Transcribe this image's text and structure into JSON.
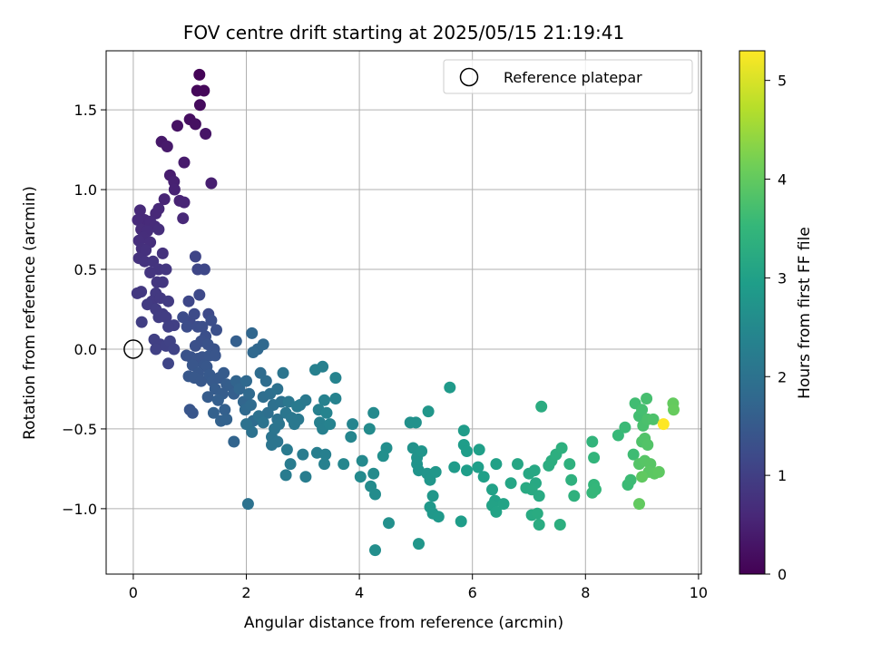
{
  "chart_data": {
    "type": "scatter",
    "title": "FOV centre drift starting at 2025/05/15 21:19:41",
    "xlabel": "Angular distance from reference (arcmin)",
    "ylabel": "Rotation from reference (arcmin)",
    "xlim": [
      -0.48,
      10.05
    ],
    "ylim": [
      -1.41,
      1.87
    ],
    "x_ticks": [
      0,
      2,
      4,
      6,
      8,
      10
    ],
    "y_ticks": [
      -1.0,
      -0.5,
      0.0,
      0.5,
      1.0,
      1.5
    ],
    "x_tick_labels": [
      "0",
      "2",
      "4",
      "6",
      "8",
      "10"
    ],
    "y_tick_labels": [
      "−1.0",
      "−0.5",
      "0.0",
      "0.5",
      "1.0",
      "1.5"
    ],
    "grid": true,
    "legend": {
      "position": "top-right",
      "entries": [
        "Reference platepar"
      ]
    },
    "reference_point": {
      "x": 0.0,
      "y": 0.0,
      "label": "Reference platepar"
    },
    "colorbar": {
      "label": "Hours from first FF file",
      "range": [
        0,
        5.3
      ],
      "ticks": [
        0,
        1,
        2,
        3,
        4,
        5
      ],
      "tick_labels": [
        "0",
        "1",
        "2",
        "3",
        "4",
        "5"
      ],
      "colormap": "viridis"
    },
    "colormap_stops": [
      "#440154",
      "#482878",
      "#3e4989",
      "#31688e",
      "#26828e",
      "#1f9e89",
      "#35b779",
      "#6ece58",
      "#b5de2b",
      "#fde725"
    ],
    "points": [
      [
        1.17,
        1.72,
        0.05
      ],
      [
        1.13,
        1.62,
        0.1
      ],
      [
        1.25,
        1.62,
        0.1
      ],
      [
        1.18,
        1.53,
        0.15
      ],
      [
        1.0,
        1.44,
        0.2
      ],
      [
        1.1,
        1.41,
        0.22
      ],
      [
        0.78,
        1.4,
        0.25
      ],
      [
        1.28,
        1.35,
        0.3
      ],
      [
        0.5,
        1.3,
        0.35
      ],
      [
        0.6,
        1.27,
        0.38
      ],
      [
        0.9,
        1.17,
        0.4
      ],
      [
        1.38,
        1.04,
        0.45
      ],
      [
        0.65,
        1.09,
        0.42
      ],
      [
        0.72,
        1.05,
        0.48
      ],
      [
        0.73,
        1.0,
        0.5
      ],
      [
        0.82,
        0.93,
        0.52
      ],
      [
        0.9,
        0.92,
        0.55
      ],
      [
        0.55,
        0.94,
        0.55
      ],
      [
        0.45,
        0.88,
        0.6
      ],
      [
        0.4,
        0.85,
        0.6
      ],
      [
        0.12,
        0.87,
        0.62
      ],
      [
        0.2,
        0.81,
        0.63
      ],
      [
        0.08,
        0.81,
        0.65
      ],
      [
        0.3,
        0.8,
        0.65
      ],
      [
        0.38,
        0.77,
        0.66
      ],
      [
        0.14,
        0.75,
        0.67
      ],
      [
        0.25,
        0.74,
        0.68
      ],
      [
        0.45,
        0.75,
        0.7
      ],
      [
        0.18,
        0.7,
        0.7
      ],
      [
        0.1,
        0.68,
        0.72
      ],
      [
        0.3,
        0.67,
        0.72
      ],
      [
        0.15,
        0.63,
        0.74
      ],
      [
        0.22,
        0.62,
        0.75
      ],
      [
        0.1,
        0.57,
        0.76
      ],
      [
        0.52,
        0.6,
        0.77
      ],
      [
        0.88,
        0.82,
        0.6
      ],
      [
        0.2,
        0.55,
        0.78
      ],
      [
        0.35,
        0.55,
        0.8
      ],
      [
        0.45,
        0.5,
        0.82
      ],
      [
        0.3,
        0.48,
        0.82
      ],
      [
        0.58,
        0.5,
        0.85
      ],
      [
        0.42,
        0.42,
        0.85
      ],
      [
        0.52,
        0.42,
        0.86
      ],
      [
        0.14,
        0.36,
        0.88
      ],
      [
        0.07,
        0.35,
        0.88
      ],
      [
        0.4,
        0.35,
        0.9
      ],
      [
        0.33,
        0.3,
        0.9
      ],
      [
        0.48,
        0.32,
        0.9
      ],
      [
        0.25,
        0.28,
        0.92
      ],
      [
        0.62,
        0.3,
        0.92
      ],
      [
        0.4,
        0.25,
        0.95
      ],
      [
        0.52,
        0.22,
        0.95
      ],
      [
        0.45,
        0.2,
        0.96
      ],
      [
        0.58,
        0.2,
        0.97
      ],
      [
        0.15,
        0.17,
        0.98
      ],
      [
        0.72,
        0.15,
        1.0
      ],
      [
        0.62,
        0.14,
        1.0
      ],
      [
        0.37,
        0.06,
        1.02
      ],
      [
        0.48,
        0.03,
        1.02
      ],
      [
        0.4,
        0.0,
        1.03
      ],
      [
        0.58,
        0.02,
        1.04
      ],
      [
        0.65,
        0.05,
        1.05
      ],
      [
        0.72,
        0.0,
        1.07
      ],
      [
        0.62,
        -0.09,
        1.1
      ],
      [
        1.1,
        0.58,
        1.1
      ],
      [
        1.14,
        0.5,
        1.12
      ],
      [
        1.26,
        0.5,
        1.15
      ],
      [
        0.98,
        0.3,
        1.15
      ],
      [
        1.17,
        0.34,
        1.18
      ],
      [
        1.33,
        0.22,
        1.2
      ],
      [
        1.0,
        0.17,
        1.2
      ],
      [
        1.08,
        0.22,
        1.22
      ],
      [
        0.88,
        0.2,
        1.24
      ],
      [
        0.95,
        0.14,
        1.25
      ],
      [
        1.14,
        0.14,
        1.26
      ],
      [
        1.22,
        0.14,
        1.27
      ],
      [
        1.38,
        0.18,
        1.28
      ],
      [
        1.47,
        0.12,
        1.3
      ],
      [
        1.28,
        0.08,
        1.3
      ],
      [
        1.2,
        0.05,
        1.32
      ],
      [
        1.1,
        0.02,
        1.32
      ],
      [
        1.32,
        0.03,
        1.34
      ],
      [
        1.43,
        0.0,
        1.35
      ],
      [
        0.94,
        -0.04,
        1.35
      ],
      [
        1.02,
        -0.05,
        1.36
      ],
      [
        1.14,
        -0.06,
        1.38
      ],
      [
        1.22,
        -0.05,
        1.38
      ],
      [
        1.35,
        -0.04,
        1.4
      ],
      [
        1.45,
        -0.04,
        1.4
      ],
      [
        1.05,
        -0.1,
        1.42
      ],
      [
        1.25,
        -0.1,
        1.43
      ],
      [
        1.3,
        -0.11,
        1.44
      ],
      [
        1.15,
        -0.15,
        1.45
      ],
      [
        0.98,
        -0.17,
        1.45
      ],
      [
        1.08,
        -0.18,
        1.46
      ],
      [
        1.2,
        -0.2,
        1.47
      ],
      [
        1.35,
        -0.16,
        1.48
      ],
      [
        1.4,
        -0.2,
        1.5
      ],
      [
        1.52,
        -0.18,
        1.5
      ],
      [
        1.6,
        -0.15,
        1.52
      ],
      [
        1.45,
        -0.25,
        1.53
      ],
      [
        1.32,
        -0.3,
        1.54
      ],
      [
        1.58,
        -0.28,
        1.55
      ],
      [
        1.65,
        -0.22,
        1.56
      ],
      [
        1.72,
        -0.23,
        1.58
      ],
      [
        1.78,
        -0.28,
        1.6
      ],
      [
        1.5,
        -0.32,
        1.6
      ],
      [
        1.62,
        -0.38,
        1.62
      ],
      [
        1.42,
        -0.4,
        1.64
      ],
      [
        1.55,
        -0.45,
        1.65
      ],
      [
        1.82,
        0.05,
        1.6
      ],
      [
        1.0,
        -0.38,
        1.4
      ],
      [
        1.05,
        -0.4,
        1.42
      ],
      [
        1.65,
        -0.44,
        1.66
      ],
      [
        1.78,
        -0.58,
        1.7
      ],
      [
        1.82,
        -0.2,
        1.7
      ],
      [
        1.88,
        -0.25,
        1.72
      ],
      [
        1.95,
        -0.33,
        1.74
      ],
      [
        2.1,
        0.1,
        1.75
      ],
      [
        2.2,
        0.0,
        1.77
      ],
      [
        2.12,
        -0.02,
        1.78
      ],
      [
        2.3,
        0.03,
        1.8
      ],
      [
        2.0,
        -0.2,
        1.8
      ],
      [
        2.05,
        -0.28,
        1.82
      ],
      [
        1.98,
        -0.38,
        1.82
      ],
      [
        2.08,
        -0.35,
        1.84
      ],
      [
        2.12,
        -0.45,
        1.85
      ],
      [
        2.25,
        -0.15,
        1.86
      ],
      [
        2.35,
        -0.2,
        1.88
      ],
      [
        2.3,
        -0.3,
        1.9
      ],
      [
        2.42,
        -0.28,
        1.92
      ],
      [
        2.38,
        -0.4,
        1.93
      ],
      [
        2.48,
        -0.35,
        1.95
      ],
      [
        2.55,
        -0.25,
        1.96
      ],
      [
        2.62,
        -0.33,
        1.98
      ],
      [
        2.22,
        -0.42,
        1.98
      ],
      [
        2.55,
        -0.44,
        2.0
      ],
      [
        2.1,
        -0.52,
        2.0
      ],
      [
        2.0,
        -0.47,
        2.0
      ],
      [
        2.3,
        -0.46,
        2.02
      ],
      [
        2.45,
        -0.55,
        2.03
      ],
      [
        2.5,
        -0.5,
        2.05
      ],
      [
        2.58,
        -0.47,
        2.06
      ],
      [
        2.7,
        -0.4,
        2.08
      ],
      [
        2.65,
        -0.15,
        2.05
      ],
      [
        2.75,
        -0.33,
        2.1
      ],
      [
        2.8,
        -0.43,
        2.1
      ],
      [
        2.85,
        -0.47,
        2.12
      ],
      [
        2.92,
        -0.44,
        2.14
      ],
      [
        2.95,
        -0.35,
        2.14
      ],
      [
        3.05,
        -0.32,
        2.16
      ],
      [
        2.9,
        -0.36,
        2.18
      ],
      [
        2.55,
        -0.58,
        2.05
      ],
      [
        2.45,
        -0.6,
        2.06
      ],
      [
        2.03,
        -0.97,
        2.0
      ],
      [
        2.72,
        -0.63,
        2.18
      ],
      [
        2.78,
        -0.72,
        2.2
      ],
      [
        2.7,
        -0.79,
        2.2
      ],
      [
        3.0,
        -0.66,
        2.22
      ],
      [
        3.05,
        -0.8,
        2.24
      ],
      [
        3.25,
        -0.65,
        2.26
      ],
      [
        3.4,
        -0.66,
        2.28
      ],
      [
        3.38,
        -0.72,
        2.3
      ],
      [
        3.3,
        -0.46,
        2.3
      ],
      [
        3.35,
        -0.5,
        2.32
      ],
      [
        3.28,
        -0.38,
        2.32
      ],
      [
        3.22,
        -0.13,
        2.3
      ],
      [
        3.35,
        -0.11,
        2.32
      ],
      [
        3.38,
        -0.32,
        2.34
      ],
      [
        3.48,
        -0.47,
        2.36
      ],
      [
        3.58,
        -0.31,
        2.36
      ],
      [
        3.58,
        -0.18,
        2.38
      ],
      [
        3.42,
        -0.4,
        2.38
      ],
      [
        3.88,
        -0.47,
        2.4
      ],
      [
        3.85,
        -0.55,
        2.42
      ],
      [
        3.72,
        -0.72,
        2.43
      ],
      [
        4.05,
        -0.7,
        2.5
      ],
      [
        4.02,
        -0.8,
        2.52
      ],
      [
        4.25,
        -0.4,
        2.53
      ],
      [
        4.18,
        -0.5,
        2.54
      ],
      [
        4.25,
        -0.78,
        2.55
      ],
      [
        4.2,
        -0.86,
        2.55
      ],
      [
        4.28,
        -0.91,
        2.57
      ],
      [
        4.48,
        -0.62,
        2.6
      ],
      [
        4.42,
        -0.67,
        2.62
      ],
      [
        4.52,
        -1.09,
        2.64
      ],
      [
        4.28,
        -1.26,
        2.6
      ],
      [
        4.9,
        -0.46,
        2.66
      ],
      [
        5.0,
        -0.46,
        2.68
      ],
      [
        4.95,
        -0.62,
        2.7
      ],
      [
        5.02,
        -0.68,
        2.72
      ],
      [
        5.02,
        -0.72,
        2.74
      ],
      [
        5.05,
        -0.76,
        2.74
      ],
      [
        5.1,
        -0.64,
        2.75
      ],
      [
        5.2,
        -0.78,
        2.76
      ],
      [
        5.25,
        -0.82,
        2.78
      ],
      [
        5.22,
        -0.39,
        2.78
      ],
      [
        5.35,
        -0.77,
        2.8
      ],
      [
        5.3,
        -0.92,
        2.8
      ],
      [
        5.25,
        -0.99,
        2.82
      ],
      [
        5.3,
        -1.03,
        2.82
      ],
      [
        5.4,
        -1.05,
        2.84
      ],
      [
        5.05,
        -1.22,
        2.78
      ],
      [
        5.6,
        -0.24,
        2.86
      ],
      [
        5.68,
        -0.74,
        2.88
      ],
      [
        5.85,
        -0.51,
        2.9
      ],
      [
        5.85,
        -0.6,
        2.92
      ],
      [
        5.9,
        -0.64,
        2.93
      ],
      [
        5.9,
        -0.76,
        2.94
      ],
      [
        5.8,
        -1.08,
        2.92
      ],
      [
        6.1,
        -0.74,
        2.96
      ],
      [
        6.12,
        -0.63,
        2.97
      ],
      [
        6.2,
        -0.8,
        2.98
      ],
      [
        6.42,
        -0.72,
        3.0
      ],
      [
        6.35,
        -0.88,
        3.02
      ],
      [
        6.4,
        -0.95,
        3.02
      ],
      [
        6.35,
        -0.98,
        3.04
      ],
      [
        6.55,
        -0.97,
        3.06
      ],
      [
        6.42,
        -1.02,
        3.06
      ],
      [
        6.68,
        -0.84,
        3.1
      ],
      [
        6.8,
        -0.72,
        3.12
      ],
      [
        7.0,
        -0.78,
        3.15
      ],
      [
        7.1,
        -0.76,
        3.16
      ],
      [
        7.12,
        -0.84,
        3.18
      ],
      [
        6.95,
        -0.87,
        3.2
      ],
      [
        7.05,
        -0.88,
        3.2
      ],
      [
        7.18,
        -0.92,
        3.22
      ],
      [
        7.05,
        -1.04,
        3.22
      ],
      [
        7.15,
        -1.03,
        3.24
      ],
      [
        7.18,
        -1.1,
        3.24
      ],
      [
        7.22,
        -0.36,
        3.26
      ],
      [
        7.35,
        -0.73,
        3.28
      ],
      [
        7.4,
        -0.7,
        3.3
      ],
      [
        7.48,
        -0.66,
        3.32
      ],
      [
        7.58,
        -0.62,
        3.34
      ],
      [
        7.55,
        -1.1,
        3.32
      ],
      [
        7.75,
        -0.82,
        3.36
      ],
      [
        7.72,
        -0.72,
        3.36
      ],
      [
        7.8,
        -0.92,
        3.38
      ],
      [
        8.12,
        -0.58,
        3.45
      ],
      [
        8.15,
        -0.68,
        3.46
      ],
      [
        8.15,
        -0.85,
        3.48
      ],
      [
        8.18,
        -0.88,
        3.5
      ],
      [
        8.12,
        -0.9,
        3.52
      ],
      [
        8.58,
        -0.54,
        3.55
      ],
      [
        8.7,
        -0.49,
        3.58
      ],
      [
        8.75,
        -0.85,
        3.6
      ],
      [
        8.8,
        -0.82,
        3.62
      ],
      [
        8.85,
        -0.66,
        3.64
      ],
      [
        8.88,
        -0.34,
        3.66
      ],
      [
        8.95,
        -0.42,
        3.68
      ],
      [
        9.0,
        -0.38,
        3.7
      ],
      [
        9.08,
        -0.31,
        3.72
      ],
      [
        9.02,
        -0.48,
        3.74
      ],
      [
        9.1,
        -0.44,
        3.76
      ],
      [
        9.2,
        -0.44,
        3.78
      ],
      [
        9.0,
        -0.58,
        3.8
      ],
      [
        9.05,
        -0.56,
        3.82
      ],
      [
        9.1,
        -0.6,
        3.84
      ],
      [
        8.95,
        -0.72,
        3.86
      ],
      [
        9.05,
        -0.7,
        3.88
      ],
      [
        9.15,
        -0.72,
        3.9
      ],
      [
        9.12,
        -0.77,
        3.92
      ],
      [
        9.22,
        -0.78,
        3.94
      ],
      [
        9.3,
        -0.77,
        3.96
      ],
      [
        9.0,
        -0.8,
        3.98
      ],
      [
        8.95,
        -0.97,
        4.0
      ],
      [
        9.55,
        -0.34,
        4.02
      ],
      [
        9.56,
        -0.38,
        4.04
      ],
      [
        9.38,
        -0.47,
        5.3
      ]
    ]
  }
}
